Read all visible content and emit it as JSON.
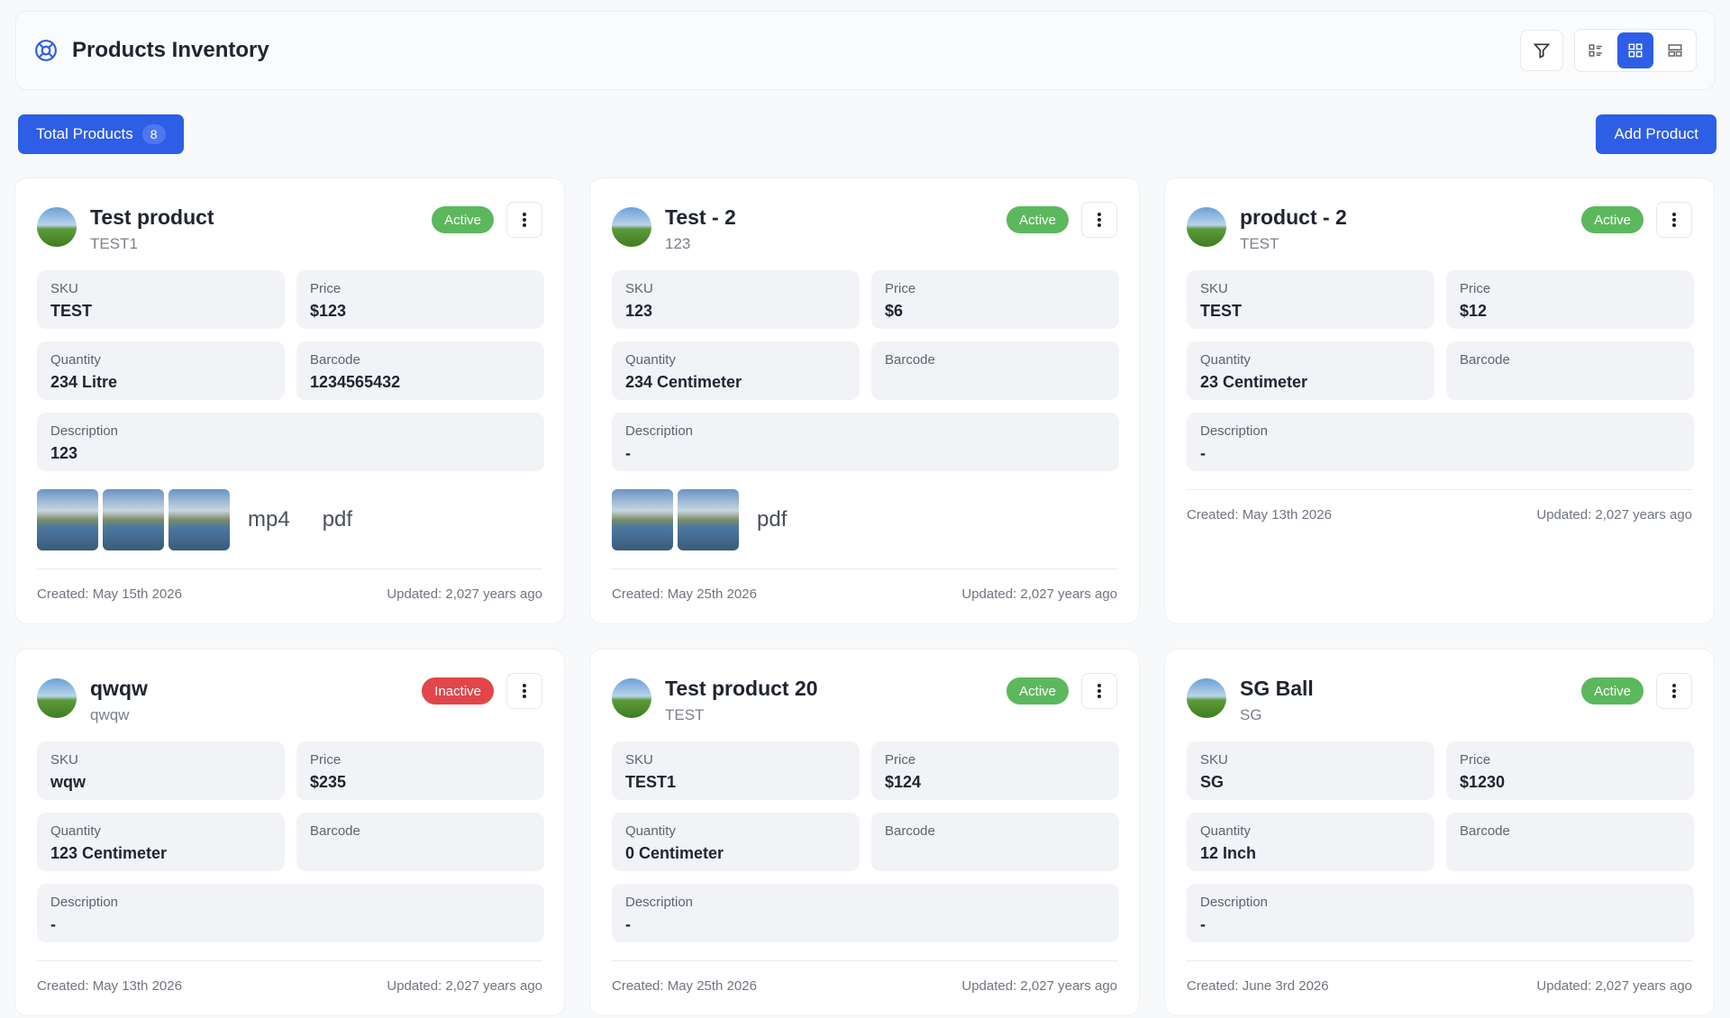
{
  "header": {
    "title": "Products Inventory"
  },
  "toolbar": {
    "total_label": "Total Products",
    "total_count": 8,
    "add_button": "Add Product"
  },
  "labels": {
    "sku": "SKU",
    "price": "Price",
    "quantity": "Quantity",
    "barcode": "Barcode",
    "description": "Description"
  },
  "products": [
    {
      "name": "Test product",
      "code": "TEST1",
      "status": "Active",
      "status_color": "#5cb85c",
      "sku": "TEST",
      "price": "$123",
      "quantity": "234 Litre",
      "barcode": "1234565432",
      "description": "123",
      "attachments": [
        null,
        null,
        null,
        "mp4",
        "pdf"
      ],
      "created": "Created: May 15th 2026",
      "updated": "Updated: 2,027 years ago"
    },
    {
      "name": "Test - 2",
      "code": "123",
      "status": "Active",
      "status_color": "#5cb85c",
      "sku": "123",
      "price": "$6",
      "quantity": "234 Centimeter",
      "barcode": null,
      "description": "-",
      "attachments": [
        null,
        null,
        "pdf"
      ],
      "created": "Created: May 25th 2026",
      "updated": "Updated: 2,027 years ago"
    },
    {
      "name": "product - 2",
      "code": "TEST",
      "status": "Active",
      "status_color": "#5cb85c",
      "sku": "TEST",
      "price": "$12",
      "quantity": "23 Centimeter",
      "barcode": null,
      "description": "-",
      "attachments": [],
      "created": "Created: May 13th 2026",
      "updated": "Updated: 2,027 years ago"
    },
    {
      "name": "qwqw",
      "code": "qwqw",
      "status": "Inactive",
      "status_color": "#e0464a",
      "sku": "wqw",
      "price": "$235",
      "quantity": "123 Centimeter",
      "barcode": null,
      "description": "-",
      "attachments": [],
      "created": "Created: May 13th 2026",
      "updated": "Updated: 2,027 years ago"
    },
    {
      "name": "Test product 20",
      "code": "TEST",
      "status": "Active",
      "status_color": "#5cb85c",
      "sku": "TEST1",
      "price": "$124",
      "quantity": "0 Centimeter",
      "barcode": null,
      "description": "-",
      "attachments": [],
      "created": "Created: May 25th 2026",
      "updated": "Updated: 2,027 years ago"
    },
    {
      "name": "SG Ball",
      "code": "SG",
      "status": "Active",
      "status_color": "#5cb85c",
      "sku": "SG",
      "price": "$1230",
      "quantity": "12 Inch",
      "barcode": null,
      "description": "-",
      "attachments": [],
      "created": "Created: June 3rd 2026",
      "updated": "Updated: 2,027 years ago"
    }
  ]
}
